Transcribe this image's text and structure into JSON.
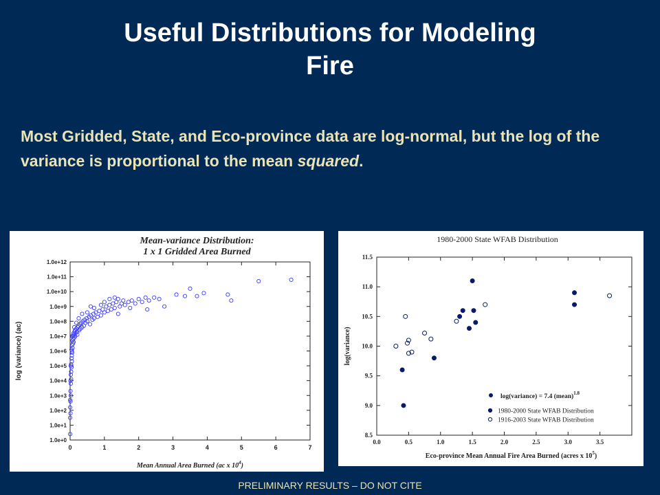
{
  "slide": {
    "title_line1": "Useful Distributions for Modeling",
    "title_line2": "Fire",
    "body_part1": "Most Gridded, State, and Eco-province data are log-normal, but the log of  the variance is proportional to the mean ",
    "body_emphasis": "squared",
    "body_part2": ".",
    "footer": "PRELIMINARY RESULTS – DO NOT CITE"
  },
  "chart_data": [
    {
      "type": "scatter",
      "title_line1": "Mean-variance Distribution:",
      "title_line2": "1 x 1 Gridded Area Burned",
      "xlabel": "Mean Annual Area Burned (ac x 10",
      "xlabel_sup": "4",
      "xlabel_end": ")",
      "ylabel": "log (variance) (ac)",
      "xlim": [
        0,
        7
      ],
      "ylim": [
        0,
        12
      ],
      "x_ticks": [
        "0",
        "1",
        "2",
        "3",
        "4",
        "5",
        "6",
        "7"
      ],
      "y_ticks": [
        "1.0e+0",
        "1.0e+1",
        "1.0e+2",
        "1.0e+3",
        "1.0e+4",
        "1.0e+5",
        "1.0e+6",
        "1.0e+7",
        "1.0e+8",
        "1.0e+9",
        "1.0e+10",
        "1.0e+11",
        "1.0e+12"
      ],
      "marker_color": "#3a3aff",
      "series": [
        {
          "marker": "open",
          "points": [
            [
              0.0,
              0.4
            ],
            [
              0.0,
              1.5
            ],
            [
              0.01,
              1.8
            ],
            [
              0.0,
              2.2
            ],
            [
              0.01,
              2.6
            ],
            [
              0.0,
              2.7
            ],
            [
              0.02,
              3.0
            ],
            [
              0.01,
              3.3
            ],
            [
              0.02,
              3.8
            ],
            [
              0.03,
              4.1
            ],
            [
              0.02,
              4.4
            ],
            [
              0.03,
              4.6
            ],
            [
              0.04,
              4.9
            ],
            [
              0.03,
              5.1
            ],
            [
              0.05,
              5.3
            ],
            [
              0.04,
              5.5
            ],
            [
              0.05,
              5.7
            ],
            [
              0.06,
              5.9
            ],
            [
              0.05,
              6.0
            ],
            [
              0.07,
              6.2
            ],
            [
              0.06,
              6.4
            ],
            [
              0.08,
              6.5
            ],
            [
              0.07,
              6.7
            ],
            [
              0.09,
              6.8
            ],
            [
              0.1,
              6.6
            ],
            [
              0.08,
              7.0
            ],
            [
              0.11,
              7.1
            ],
            [
              0.12,
              6.9
            ],
            [
              0.1,
              7.2
            ],
            [
              0.13,
              7.3
            ],
            [
              0.15,
              7.0
            ],
            [
              0.14,
              7.4
            ],
            [
              0.16,
              7.2
            ],
            [
              0.18,
              7.5
            ],
            [
              0.2,
              7.3
            ],
            [
              0.22,
              7.6
            ],
            [
              0.21,
              7.1
            ],
            [
              0.24,
              7.7
            ],
            [
              0.26,
              7.4
            ],
            [
              0.28,
              7.8
            ],
            [
              0.3,
              7.5
            ],
            [
              0.32,
              7.9
            ],
            [
              0.35,
              7.6
            ],
            [
              0.37,
              8.0
            ],
            [
              0.4,
              7.7
            ],
            [
              0.42,
              8.1
            ],
            [
              0.45,
              7.9
            ],
            [
              0.48,
              8.2
            ],
            [
              0.5,
              8.0
            ],
            [
              0.55,
              8.3
            ],
            [
              0.58,
              7.8
            ],
            [
              0.6,
              8.4
            ],
            [
              0.65,
              8.1
            ],
            [
              0.68,
              8.5
            ],
            [
              0.7,
              8.2
            ],
            [
              0.75,
              8.6
            ],
            [
              0.8,
              8.3
            ],
            [
              0.85,
              8.7
            ],
            [
              0.9,
              8.4
            ],
            [
              0.95,
              8.8
            ],
            [
              1.0,
              8.6
            ],
            [
              1.05,
              9.0
            ],
            [
              1.1,
              8.7
            ],
            [
              1.15,
              9.1
            ],
            [
              1.2,
              8.8
            ],
            [
              1.25,
              9.2
            ],
            [
              1.3,
              8.9
            ],
            [
              1.35,
              9.3
            ],
            [
              1.4,
              8.5
            ],
            [
              1.45,
              9.0
            ],
            [
              1.5,
              9.2
            ],
            [
              1.55,
              9.4
            ],
            [
              1.6,
              9.1
            ],
            [
              1.7,
              9.3
            ],
            [
              1.75,
              8.9
            ],
            [
              1.8,
              9.4
            ],
            [
              1.9,
              9.2
            ],
            [
              2.0,
              9.5
            ],
            [
              2.1,
              9.3
            ],
            [
              2.2,
              9.6
            ],
            [
              2.25,
              8.8
            ],
            [
              2.3,
              9.4
            ],
            [
              2.45,
              9.6
            ],
            [
              2.6,
              9.5
            ],
            [
              2.75,
              9.0
            ],
            [
              3.1,
              9.8
            ],
            [
              3.35,
              9.7
            ],
            [
              3.5,
              10.2
            ],
            [
              3.7,
              9.7
            ],
            [
              3.9,
              9.9
            ],
            [
              4.6,
              9.8
            ],
            [
              4.7,
              9.4
            ],
            [
              5.5,
              10.7
            ],
            [
              6.45,
              10.8
            ],
            [
              0.6,
              9.0
            ],
            [
              0.7,
              8.9
            ],
            [
              0.9,
              9.1
            ],
            [
              1.0,
              9.3
            ],
            [
              1.15,
              9.5
            ],
            [
              1.3,
              9.6
            ],
            [
              1.4,
              9.5
            ],
            [
              0.5,
              8.6
            ],
            [
              0.35,
              8.5
            ],
            [
              0.25,
              8.2
            ],
            [
              0.18,
              7.9
            ],
            [
              0.12,
              7.6
            ],
            [
              0.06,
              7.0
            ],
            [
              0.04,
              6.1
            ],
            [
              0.02,
              5.0
            ],
            [
              0.01,
              4.0
            ]
          ]
        }
      ]
    },
    {
      "type": "scatter",
      "title": "1980-2000 State WFAB Distribution",
      "xlabel": "Eco-province Mean Annual Fire Area Burned (acres x 10",
      "xlabel_sup": "5",
      "xlabel_end": ")",
      "ylabel": "log(variance)",
      "xlim": [
        0.0,
        4.0
      ],
      "ylim": [
        8.5,
        11.5
      ],
      "x_ticks": [
        "0.0",
        "0.5",
        "1.0",
        "1.5",
        "2.0",
        "2.5",
        "3.0",
        "3.5"
      ],
      "y_ticks": [
        "8.5",
        "9.0",
        "9.5",
        "10.0",
        "10.5",
        "11.0",
        "11.5"
      ],
      "annotation": "log(variance) = 7.4 (mean)",
      "annotation_sup": "1.8",
      "legend_position": "bottom-right",
      "marker_color": "#0a1a6b",
      "series": [
        {
          "name": "1980-2000 State WFAB Distribution",
          "marker": "filled",
          "points": [
            [
              0.4,
              9.6
            ],
            [
              0.42,
              9.0
            ],
            [
              0.9,
              9.8
            ],
            [
              1.3,
              10.5
            ],
            [
              1.35,
              10.6
            ],
            [
              1.45,
              10.3
            ],
            [
              1.5,
              11.1
            ],
            [
              1.52,
              10.6
            ],
            [
              1.55,
              10.4
            ],
            [
              3.1,
              10.9
            ],
            [
              3.1,
              10.7
            ]
          ]
        },
        {
          "name": "1916-2003 State WFAB Distribution",
          "marker": "open",
          "points": [
            [
              0.3,
              10.0
            ],
            [
              0.45,
              10.5
            ],
            [
              0.48,
              10.05
            ],
            [
              0.5,
              10.1
            ],
            [
              0.5,
              9.88
            ],
            [
              0.55,
              9.9
            ],
            [
              0.75,
              10.22
            ],
            [
              0.85,
              10.12
            ],
            [
              1.25,
              10.42
            ],
            [
              1.7,
              10.7
            ],
            [
              3.65,
              10.85
            ]
          ]
        }
      ]
    }
  ]
}
